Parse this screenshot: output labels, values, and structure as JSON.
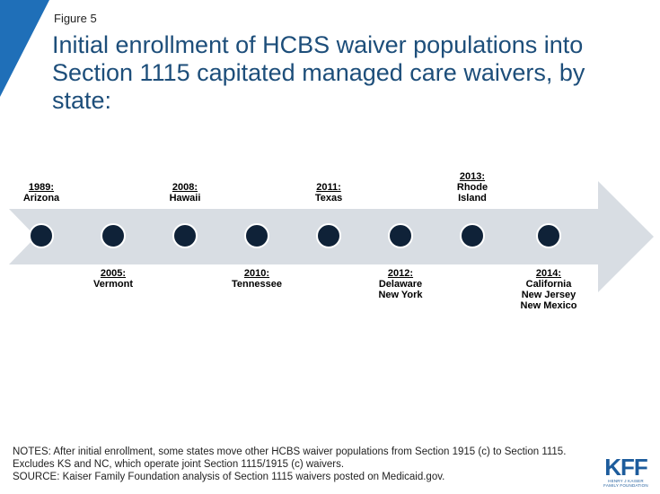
{
  "figure_label": "Figure 5",
  "title": "Initial enrollment of HCBS waiver populations into Section 1115 capitated managed care waivers, by state:",
  "colors": {
    "accent": "#1f6fb8",
    "title": "#1d4e7a",
    "arrow": "#d8dde3",
    "dot": "#0f2238"
  },
  "timeline": {
    "events": [
      {
        "year": "1989:",
        "states": [
          "Arizona"
        ]
      },
      {
        "year": "2005:",
        "states": [
          "Vermont"
        ]
      },
      {
        "year": "2008:",
        "states": [
          "Hawaii"
        ]
      },
      {
        "year": "2010:",
        "states": [
          "Tennessee"
        ]
      },
      {
        "year": "2011:",
        "states": [
          "Texas"
        ]
      },
      {
        "year": "2012:",
        "states": [
          "Delaware",
          "New York"
        ]
      },
      {
        "year": "2013:",
        "states": [
          "Rhode",
          "Island"
        ]
      },
      {
        "year": "2014:",
        "states": [
          "California",
          "New Jersey",
          "New Mexico"
        ]
      }
    ]
  },
  "notes": {
    "line1": "NOTES:  After initial enrollment, some states move other HCBS waiver populations from Section 1915 (c) to Section 1115. Excludes KS and NC, which operate joint Section 1115/1915 (c) waivers.",
    "line2": "SOURCE:  Kaiser Family Foundation analysis of Section 1115 waivers posted on Medicaid.gov."
  },
  "logo": {
    "text": "KFF",
    "subtitle_1": "HENRY J KAISER",
    "subtitle_2": "FAMILY FOUNDATION"
  }
}
